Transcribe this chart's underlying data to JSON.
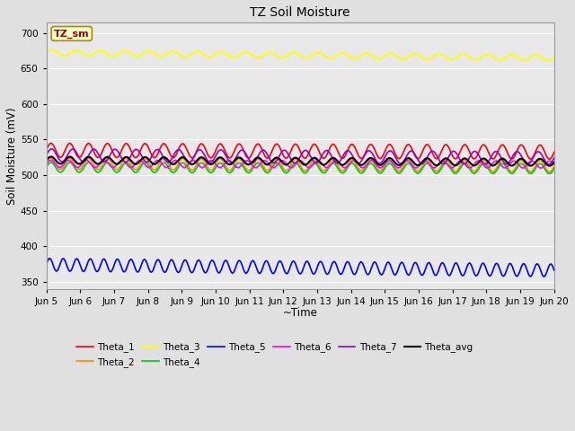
{
  "title": "TZ Soil Moisture",
  "xlabel": "~Time",
  "ylabel": "Soil Moisture (mV)",
  "ylim": [
    340,
    715
  ],
  "yticks": [
    350,
    400,
    450,
    500,
    550,
    600,
    650,
    700
  ],
  "x_start": 5,
  "x_end": 20,
  "num_points": 500,
  "label_box_text": "TZ_sm",
  "series": {
    "Theta_1": {
      "color": "#ff0000",
      "base": 535,
      "amplitude": 10,
      "trend": -2.5,
      "freq": 1.8,
      "lw": 1.2
    },
    "Theta_2": {
      "color": "#ff8c00",
      "base": 516,
      "amplitude": 8,
      "trend": -3.5,
      "freq": 1.8,
      "lw": 1.2
    },
    "Theta_3": {
      "color": "#ffff00",
      "base": 672,
      "amplitude": 4,
      "trend": -7.0,
      "freq": 1.4,
      "lw": 1.5
    },
    "Theta_4": {
      "color": "#00cc00",
      "base": 511,
      "amplitude": 7,
      "trend": -2.0,
      "freq": 1.8,
      "lw": 1.2
    },
    "Theta_5": {
      "color": "#0000ff",
      "base": 374,
      "amplitude": 9,
      "trend": -8.0,
      "freq": 2.5,
      "lw": 1.2
    },
    "Theta_6": {
      "color": "#ff00ff",
      "base": 516,
      "amplitude": 5,
      "trend": -1.0,
      "freq": 1.9,
      "lw": 1.2
    },
    "Theta_7": {
      "color": "#9900cc",
      "base": 528,
      "amplitude": 9,
      "trend": -4.0,
      "freq": 1.6,
      "lw": 1.2
    },
    "Theta_avg": {
      "color": "#000000",
      "base": 521,
      "amplitude": 5,
      "trend": -3.0,
      "freq": 1.8,
      "lw": 1.5
    }
  },
  "legend_order": [
    "Theta_1",
    "Theta_2",
    "Theta_3",
    "Theta_4",
    "Theta_5",
    "Theta_6",
    "Theta_7",
    "Theta_avg"
  ],
  "xtick_labels": [
    "Jun 5",
    "Jun 6",
    "Jun 7",
    "Jun 8",
    "Jun 9",
    "Jun 10",
    "Jun 11",
    "Jun 12",
    "Jun 13",
    "Jun 14",
    "Jun 15",
    "Jun 16",
    "Jun 17",
    "Jun 18",
    "Jun 19",
    "Jun 20"
  ],
  "xtick_positions": [
    5,
    6,
    7,
    8,
    9,
    10,
    11,
    12,
    13,
    14,
    15,
    16,
    17,
    18,
    19,
    20
  ],
  "bg_color": "#e8e8e8",
  "fig_bg_color": "#e0e0e0"
}
